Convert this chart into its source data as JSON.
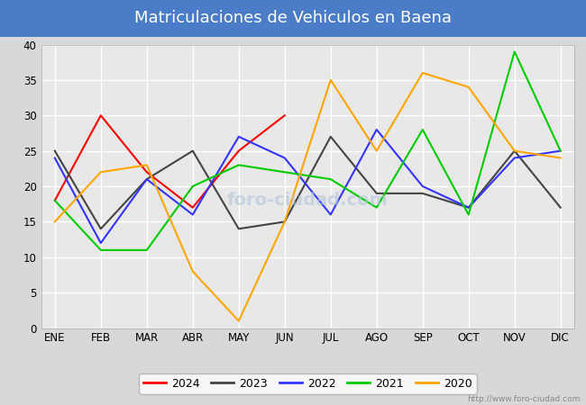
{
  "title": "Matriculaciones de Vehiculos en Baena",
  "title_bg_color": "#4a7cc7",
  "title_text_color": "#ffffff",
  "ylim": [
    0,
    40
  ],
  "yticks": [
    0,
    5,
    10,
    15,
    20,
    25,
    30,
    35,
    40
  ],
  "months": [
    "ENE",
    "FEB",
    "MAR",
    "ABR",
    "MAY",
    "JUN",
    "JUL",
    "AGO",
    "SEP",
    "OCT",
    "NOV",
    "DIC"
  ],
  "series": {
    "2024": {
      "color": "#ff0000",
      "data": [
        18,
        30,
        22,
        17,
        25,
        30,
        null,
        null,
        null,
        null,
        null,
        null
      ]
    },
    "2023": {
      "color": "#444444",
      "data": [
        25,
        14,
        21,
        25,
        14,
        15,
        27,
        19,
        19,
        17,
        25,
        17
      ]
    },
    "2022": {
      "color": "#3333ff",
      "data": [
        24,
        12,
        21,
        16,
        27,
        24,
        16,
        28,
        20,
        17,
        24,
        25
      ]
    },
    "2021": {
      "color": "#00cc00",
      "data": [
        18,
        11,
        11,
        20,
        23,
        22,
        21,
        17,
        28,
        16,
        39,
        25
      ]
    },
    "2020": {
      "color": "#ffa500",
      "data": [
        15,
        22,
        23,
        8,
        1,
        15,
        35,
        25,
        36,
        34,
        25,
        24
      ]
    }
  },
  "legend_order": [
    "2024",
    "2023",
    "2022",
    "2021",
    "2020"
  ],
  "footnote": "http://www.foro-ciudad.com",
  "bg_color": "#d8d8d8",
  "plot_bg_color": "#e8e8e8",
  "grid_color": "#ffffff",
  "title_fontsize": 13,
  "tick_fontsize": 8.5,
  "linewidth": 1.5
}
